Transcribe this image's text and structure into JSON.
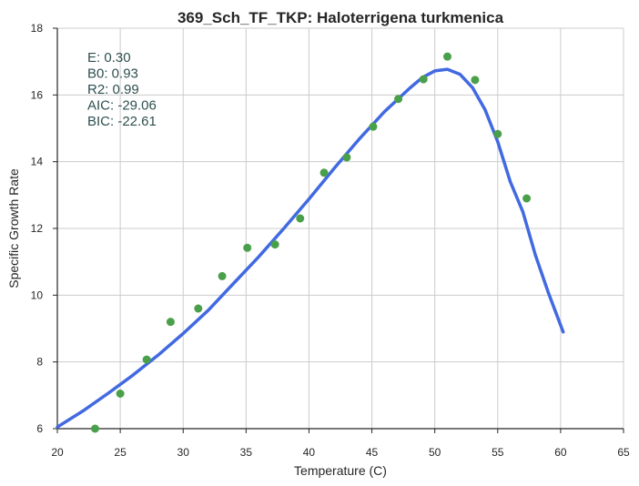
{
  "chart_data": {
    "type": "scatter",
    "title": "369_Sch_TF_TKP: Haloterrigena turkmenica",
    "xlabel": "Temperature (C)",
    "ylabel": "Specific Growth Rate",
    "xlim": [
      20,
      65
    ],
    "ylim": [
      6,
      18
    ],
    "xticks": [
      20,
      25,
      30,
      35,
      40,
      45,
      50,
      55,
      60,
      65
    ],
    "yticks": [
      6,
      8,
      10,
      12,
      14,
      16,
      18
    ],
    "grid": true,
    "legend": "none",
    "colors": {
      "points": "#4aa04a",
      "fit": "#4169e1"
    },
    "stats": [
      "E:  0.30",
      "B0:  0.93",
      "R2:  0.99",
      "AIC: -29.06",
      "BIC: -22.61"
    ],
    "points": {
      "x": [
        23.0,
        25.0,
        27.1,
        29.0,
        31.2,
        33.1,
        35.1,
        37.3,
        39.3,
        41.2,
        43.0,
        45.1,
        47.1,
        49.1,
        51.0,
        53.2,
        55.0,
        57.3
      ],
      "y": [
        6.0,
        7.05,
        8.07,
        9.2,
        9.6,
        10.57,
        11.42,
        11.52,
        12.3,
        13.67,
        14.13,
        15.05,
        15.88,
        16.47,
        17.15,
        16.45,
        14.83,
        12.9
      ]
    },
    "fit_line": {
      "x": [
        20,
        22,
        24,
        26,
        28,
        30,
        32,
        34,
        36,
        38,
        40,
        42,
        44,
        46,
        48,
        49,
        50,
        51,
        52,
        53,
        54,
        55,
        56,
        57,
        58,
        59,
        60.2
      ],
      "y": [
        6.05,
        6.52,
        7.05,
        7.6,
        8.2,
        8.85,
        9.55,
        10.35,
        11.15,
        12.0,
        12.88,
        13.8,
        14.68,
        15.5,
        16.2,
        16.52,
        16.72,
        16.77,
        16.62,
        16.22,
        15.55,
        14.6,
        13.4,
        12.5,
        11.2,
        10.1,
        8.9
      ]
    }
  }
}
